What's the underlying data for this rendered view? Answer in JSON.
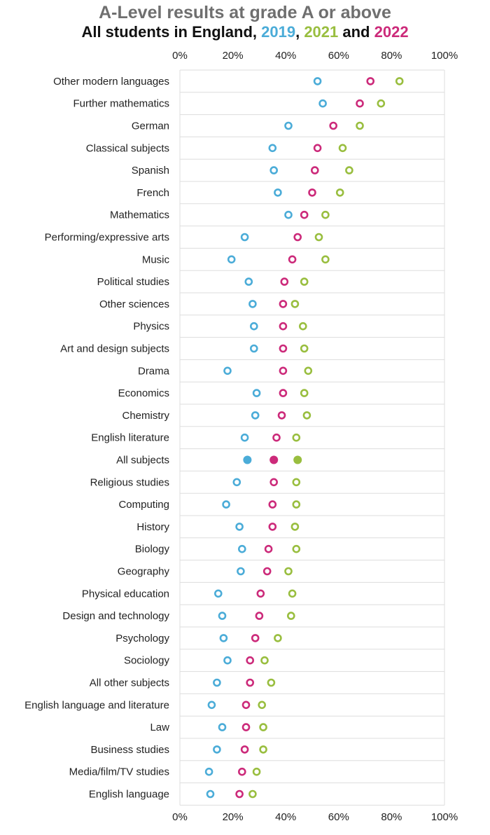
{
  "colors": {
    "y2019": "#4bacd8",
    "y2021": "#99be3f",
    "y2022": "#cc2a7a",
    "grid": "#dddddd",
    "text": "#222222"
  },
  "header": {
    "title": "A-Level results at grade A or above",
    "subtitle_prefix": "All students in England, ",
    "year1": "2019",
    "sep1": ", ",
    "year2": "2021",
    "sep2": " and ",
    "year3": "2022"
  },
  "chart_data": {
    "type": "scatter",
    "title": "A-Level results at grade A or above",
    "subtitle": "All students in England, 2019, 2021 and 2022",
    "xlabel": "",
    "ylabel": "",
    "xlim": [
      0,
      100
    ],
    "x_ticks": [
      "0%",
      "20%",
      "40%",
      "60%",
      "80%",
      "100%"
    ],
    "x_tick_values": [
      0,
      20,
      40,
      60,
      80,
      100
    ],
    "highlight_category": "All subjects",
    "categories": [
      "Other modern languages",
      "Further mathematics",
      "German",
      "Classical subjects",
      "Spanish",
      "French",
      "Mathematics",
      "Performing/expressive arts",
      "Music",
      "Political studies",
      "Other sciences",
      "Physics",
      "Art and design subjects",
      "Drama",
      "Economics",
      "Chemistry",
      "English literature",
      "All subjects",
      "Religious studies",
      "Computing",
      "History",
      "Biology",
      "Geography",
      "Physical education",
      "Design and technology",
      "Psychology",
      "Sociology",
      "All other subjects",
      "English language and literature",
      "Law",
      "Business studies",
      "Media/film/TV studies",
      "English language"
    ],
    "series": [
      {
        "name": "2019",
        "colorKey": "y2019",
        "values": [
          52,
          54,
          41,
          35,
          35.5,
          37,
          41,
          24.5,
          19.5,
          26,
          27.5,
          28,
          28,
          18,
          29,
          28.5,
          24.5,
          25.5,
          21.5,
          17.5,
          22.5,
          23.5,
          23,
          14.5,
          16,
          16.5,
          18,
          14,
          12,
          16,
          14,
          11,
          11.5
        ]
      },
      {
        "name": "2021",
        "colorKey": "y2021",
        "values": [
          83,
          76,
          68,
          61.5,
          64,
          60.5,
          55,
          52.5,
          55,
          47,
          43.5,
          46.5,
          47,
          48.5,
          47,
          48,
          44,
          44.5,
          44,
          44,
          43.5,
          44,
          41,
          42.5,
          42,
          37,
          32,
          34.5,
          31,
          31.5,
          31.5,
          29,
          27.5
        ]
      },
      {
        "name": "2022",
        "colorKey": "y2022",
        "values": [
          72,
          68,
          58,
          52,
          51,
          50,
          47,
          44.5,
          42.5,
          39.5,
          39,
          39,
          39,
          39,
          39,
          38.5,
          36.5,
          35.5,
          35.5,
          35,
          35,
          33.5,
          33,
          30.5,
          30,
          28.5,
          26.5,
          26.5,
          25,
          25,
          24.5,
          23.5,
          22.5
        ]
      }
    ]
  }
}
